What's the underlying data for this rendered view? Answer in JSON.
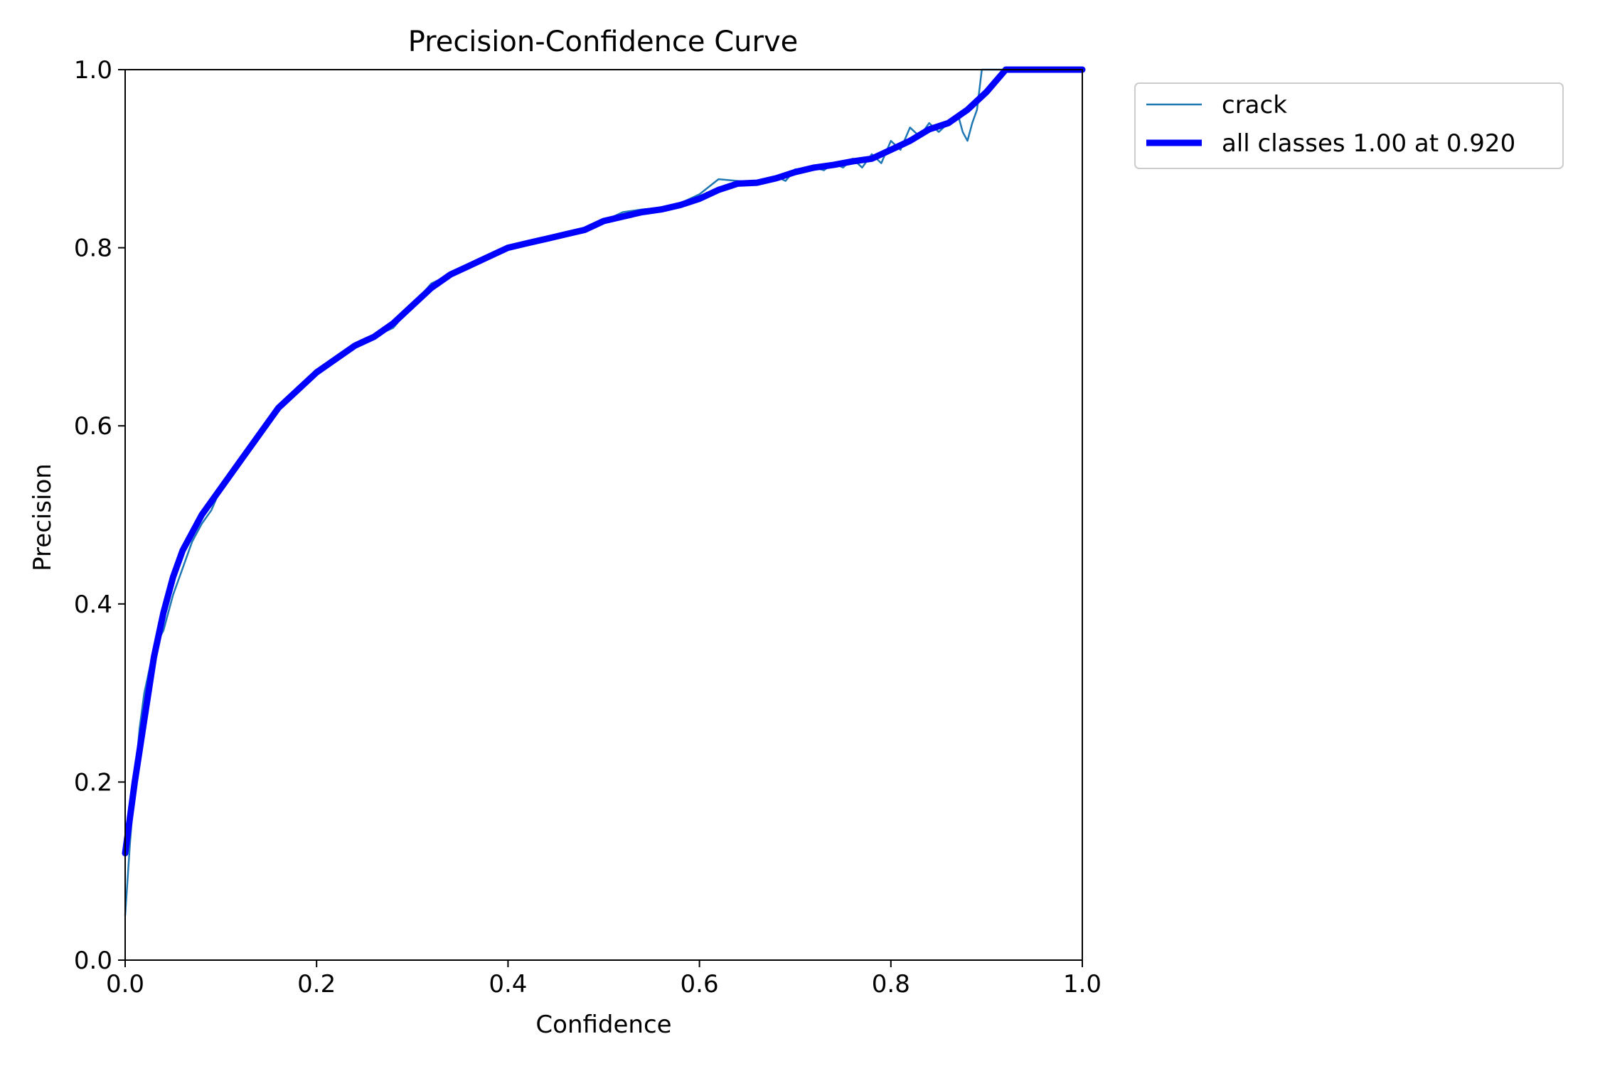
{
  "chart_data": {
    "type": "line",
    "title": "Precision-Confidence Curve",
    "xlabel": "Confidence",
    "ylabel": "Precision",
    "xlim": [
      0,
      1
    ],
    "ylim": [
      0,
      1
    ],
    "xticks": [
      "0.0",
      "0.2",
      "0.4",
      "0.6",
      "0.8",
      "1.0"
    ],
    "yticks": [
      "0.0",
      "0.2",
      "0.4",
      "0.6",
      "0.8",
      "1.0"
    ],
    "grid": false,
    "legend": {
      "placement": "outside upper-right"
    },
    "series": [
      {
        "name": "crack",
        "color": "#1f77b4",
        "style": "thin",
        "x": [
          0.0,
          0.005,
          0.01,
          0.015,
          0.02,
          0.03,
          0.04,
          0.05,
          0.06,
          0.07,
          0.08,
          0.09,
          0.1,
          0.12,
          0.14,
          0.16,
          0.18,
          0.2,
          0.22,
          0.24,
          0.26,
          0.28,
          0.3,
          0.32,
          0.34,
          0.36,
          0.38,
          0.4,
          0.42,
          0.44,
          0.46,
          0.48,
          0.5,
          0.52,
          0.54,
          0.56,
          0.58,
          0.6,
          0.62,
          0.64,
          0.66,
          0.68,
          0.69,
          0.7,
          0.72,
          0.73,
          0.74,
          0.75,
          0.76,
          0.77,
          0.78,
          0.79,
          0.8,
          0.81,
          0.82,
          0.83,
          0.84,
          0.85,
          0.86,
          0.87,
          0.875,
          0.88,
          0.885,
          0.89,
          0.895,
          0.9,
          0.92,
          0.95,
          1.0
        ],
        "y": [
          0.05,
          0.13,
          0.2,
          0.26,
          0.3,
          0.35,
          0.37,
          0.41,
          0.44,
          0.47,
          0.49,
          0.505,
          0.53,
          0.56,
          0.59,
          0.62,
          0.64,
          0.66,
          0.675,
          0.69,
          0.7,
          0.71,
          0.735,
          0.76,
          0.77,
          0.78,
          0.79,
          0.8,
          0.805,
          0.808,
          0.815,
          0.822,
          0.83,
          0.84,
          0.843,
          0.845,
          0.85,
          0.86,
          0.877,
          0.875,
          0.873,
          0.88,
          0.875,
          0.888,
          0.89,
          0.887,
          0.895,
          0.89,
          0.9,
          0.89,
          0.905,
          0.895,
          0.92,
          0.91,
          0.935,
          0.925,
          0.94,
          0.93,
          0.94,
          0.95,
          0.93,
          0.92,
          0.94,
          0.955,
          1.0,
          1.0,
          1.0,
          1.0,
          1.0
        ]
      },
      {
        "name": "all classes 1.00 at 0.920",
        "color": "#0000ff",
        "style": "thick",
        "x": [
          0.0,
          0.01,
          0.02,
          0.03,
          0.04,
          0.05,
          0.06,
          0.08,
          0.1,
          0.12,
          0.14,
          0.16,
          0.18,
          0.2,
          0.22,
          0.24,
          0.26,
          0.28,
          0.3,
          0.32,
          0.34,
          0.36,
          0.38,
          0.4,
          0.42,
          0.44,
          0.46,
          0.48,
          0.5,
          0.52,
          0.54,
          0.56,
          0.58,
          0.6,
          0.62,
          0.64,
          0.66,
          0.68,
          0.7,
          0.72,
          0.74,
          0.76,
          0.78,
          0.8,
          0.82,
          0.84,
          0.86,
          0.88,
          0.9,
          0.92,
          0.95,
          1.0
        ],
        "y": [
          0.12,
          0.2,
          0.27,
          0.34,
          0.39,
          0.43,
          0.46,
          0.5,
          0.53,
          0.56,
          0.59,
          0.62,
          0.64,
          0.66,
          0.675,
          0.69,
          0.7,
          0.715,
          0.735,
          0.755,
          0.77,
          0.78,
          0.79,
          0.8,
          0.805,
          0.81,
          0.815,
          0.82,
          0.83,
          0.835,
          0.84,
          0.843,
          0.848,
          0.855,
          0.865,
          0.872,
          0.873,
          0.878,
          0.885,
          0.89,
          0.893,
          0.897,
          0.9,
          0.91,
          0.92,
          0.933,
          0.94,
          0.955,
          0.975,
          1.0,
          1.0,
          1.0
        ]
      }
    ]
  }
}
